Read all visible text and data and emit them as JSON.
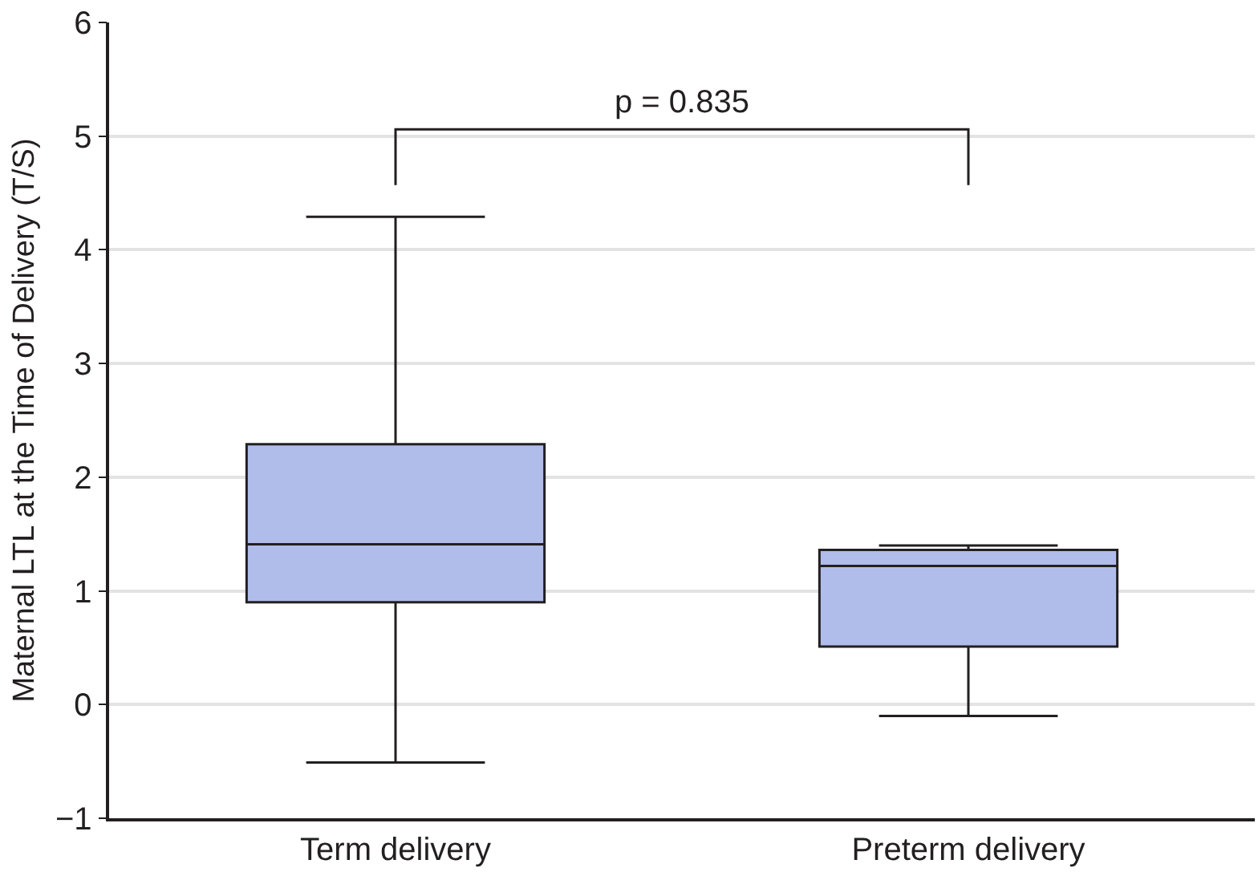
{
  "chart_data": {
    "type": "box",
    "ylabel": "Maternal LTL at the Time of Delivery (T/S)",
    "categories": [
      "Term delivery",
      "Preterm delivery"
    ],
    "boxes": [
      {
        "low": -0.51,
        "q1": 0.9,
        "median": 1.41,
        "q3": 2.29,
        "high": 4.29
      },
      {
        "low": -0.1,
        "q1": 0.51,
        "median": 1.22,
        "q3": 1.36,
        "high": 1.4
      }
    ],
    "color": "#b0bdea",
    "ylim": [
      -1,
      6
    ],
    "yticks": [
      -1,
      0,
      1,
      2,
      3,
      4,
      5,
      6
    ],
    "grid": "y",
    "annotations": [
      "p = 0.835"
    ]
  }
}
